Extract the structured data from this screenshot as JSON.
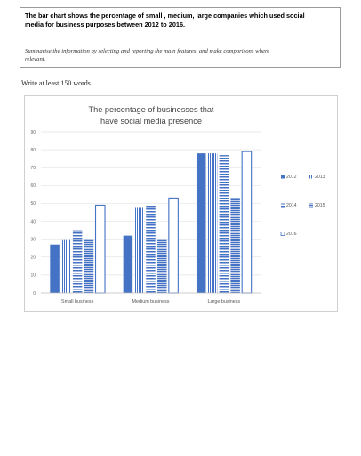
{
  "task": {
    "heading_line1": "The bar chart shows the percentage of small , medium, large companies which used social",
    "heading_line2": "media for business purposes between 2012 to 2016.",
    "instruction_line1": "Summarise the information by selecting and reporting the main features, and make comparisons where",
    "instruction_line2": "relevant."
  },
  "write_note": "Write at least 150 words.",
  "chart_data": {
    "type": "bar",
    "title_line1": "The percentage of businesses that",
    "title_line2": "have social media presence",
    "categories": [
      "Small business",
      "Medium business",
      "Large business"
    ],
    "series": [
      {
        "name": "2012",
        "values": [
          27,
          32,
          78
        ],
        "color": "#4472c4",
        "pattern": "solid"
      },
      {
        "name": "2013",
        "values": [
          30,
          48,
          78
        ],
        "color": "#4472c4",
        "pattern": "vertical-stripes"
      },
      {
        "name": "2014",
        "values": [
          35,
          49,
          77
        ],
        "color": "#4472c4",
        "pattern": "horizontal-stripes"
      },
      {
        "name": "2015",
        "values": [
          30,
          30,
          53
        ],
        "color": "#4472c4",
        "pattern": "dense-stripes"
      },
      {
        "name": "2016",
        "values": [
          49,
          53,
          79
        ],
        "color": "#4472c4",
        "pattern": "outline"
      }
    ],
    "yticks": [
      0,
      10,
      20,
      30,
      40,
      50,
      60,
      70,
      80,
      90
    ],
    "ylim": [
      0,
      90
    ],
    "grid": true,
    "legend_position": "right"
  }
}
